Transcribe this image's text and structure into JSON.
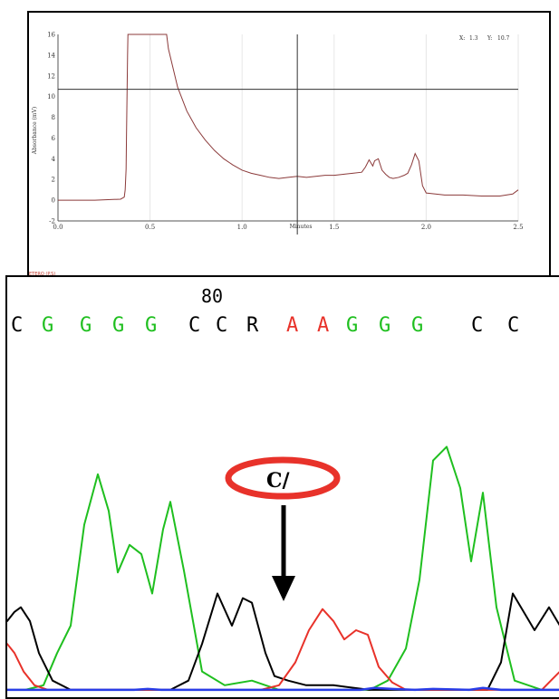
{
  "chart_data": [
    {
      "type": "line",
      "xlabel": "Minutes",
      "ylabel": "Absorbance (mV)",
      "xlim": [
        0.0,
        2.5
      ],
      "ylim": [
        -2,
        16
      ],
      "x_ticks": [
        "0.0",
        "0.5",
        "1.0",
        "1.5",
        "2.0",
        "2.5"
      ],
      "y_ticks": [
        "-2",
        "0",
        "2",
        "4",
        "6",
        "8",
        "10",
        "12",
        "14",
        "16"
      ],
      "grid": "vertical",
      "cursor": {
        "x": 1.3,
        "y": 10.7
      },
      "cursor_readout": {
        "x_label": "X:",
        "x_value": "1.3",
        "y_label": "Y:",
        "y_value": "10.7"
      },
      "footer_label": "ETERO (P.S)",
      "line_color": "#8b3a3a",
      "series": [
        {
          "x": [
            0.0,
            0.2,
            0.34,
            0.36,
            0.365,
            0.37,
            0.372,
            0.375,
            0.378,
            0.38,
            0.385,
            0.59,
            0.6,
            0.65,
            0.7,
            0.75,
            0.8,
            0.85,
            0.9,
            0.95,
            1.0,
            1.05,
            1.1,
            1.15,
            1.2,
            1.25,
            1.3,
            1.35,
            1.4,
            1.45,
            1.5,
            1.55,
            1.6,
            1.65,
            1.67,
            1.69,
            1.71,
            1.72,
            1.74,
            1.76,
            1.78,
            1.8,
            1.82,
            1.85,
            1.88,
            1.9,
            1.92,
            1.94,
            1.96,
            1.98,
            2.0,
            2.05,
            2.1,
            2.2,
            2.3,
            2.4,
            2.47,
            2.5
          ],
          "y": [
            0.0,
            0.0,
            0.1,
            0.3,
            1.0,
            3.0,
            6.0,
            10.0,
            14.0,
            16.0,
            16.0,
            16.0,
            14.6,
            10.9,
            8.6,
            7.0,
            5.8,
            4.8,
            4.0,
            3.4,
            2.9,
            2.6,
            2.4,
            2.2,
            2.1,
            2.2,
            2.3,
            2.2,
            2.3,
            2.4,
            2.4,
            2.5,
            2.6,
            2.7,
            3.2,
            3.9,
            3.3,
            3.8,
            4.0,
            2.9,
            2.5,
            2.2,
            2.1,
            2.2,
            2.4,
            2.6,
            3.4,
            4.5,
            3.8,
            1.4,
            0.7,
            0.6,
            0.5,
            0.5,
            0.4,
            0.4,
            0.6,
            1.0
          ]
        }
      ]
    },
    {
      "type": "line",
      "position_label": "80",
      "bases": [
        {
          "letter": "C",
          "color": "#000000"
        },
        {
          "letter": "G",
          "color": "#1fbf1f"
        },
        {
          "letter": "G",
          "color": "#1fbf1f"
        },
        {
          "letter": "G",
          "color": "#1fbf1f"
        },
        {
          "letter": "G",
          "color": "#1fbf1f"
        },
        {
          "letter": "C",
          "color": "#000000"
        },
        {
          "letter": "C",
          "color": "#000000"
        },
        {
          "letter": "R",
          "color": "#000000"
        },
        {
          "letter": "A",
          "color": "#e8322a"
        },
        {
          "letter": "A",
          "color": "#e8322a"
        },
        {
          "letter": "G",
          "color": "#1fbf1f"
        },
        {
          "letter": "G",
          "color": "#1fbf1f"
        },
        {
          "letter": "G",
          "color": "#1fbf1f"
        },
        {
          "letter": "C",
          "color": "#000000"
        },
        {
          "letter": "C",
          "color": "#000000"
        }
      ],
      "annotation_text": "C/",
      "annotation_color": "#e8322a",
      "x_range": [
        0,
        610
      ],
      "y_range": [
        0,
        460
      ],
      "series": [
        {
          "name": "G",
          "color": "#1fbf1f",
          "x": [
            0,
            20,
            40,
            55,
            70,
            85,
            100,
            112,
            122,
            135,
            148,
            160,
            172,
            180,
            195,
            215,
            240,
            270,
            300,
            320,
            340,
            370,
            400,
            420,
            440,
            455,
            470,
            485,
            500,
            512,
            525,
            540,
            560,
            590,
            610
          ],
          "y": [
            450,
            450,
            445,
            410,
            380,
            270,
            215,
            255,
            322,
            292,
            302,
            345,
            275,
            245,
            320,
            430,
            445,
            440,
            450,
            450,
            450,
            450,
            450,
            440,
            405,
            330,
            200,
            185,
            230,
            310,
            235,
            360,
            440,
            450,
            450
          ]
        },
        {
          "name": "C",
          "color": "#000000",
          "x": [
            0,
            8,
            15,
            25,
            35,
            50,
            70,
            100,
            140,
            180,
            200,
            215,
            232,
            248,
            260,
            270,
            285,
            295,
            310,
            330,
            360,
            400,
            450,
            500,
            530,
            545,
            558,
            570,
            582,
            598,
            610
          ],
          "y": [
            375,
            365,
            360,
            375,
            410,
            440,
            450,
            450,
            450,
            450,
            440,
            400,
            345,
            380,
            350,
            355,
            410,
            435,
            440,
            445,
            445,
            450,
            450,
            450,
            450,
            420,
            345,
            365,
            385,
            360,
            380
          ]
        },
        {
          "name": "A",
          "color": "#e8322a",
          "x": [
            0,
            8,
            18,
            30,
            45,
            60,
            100,
            200,
            280,
            300,
            318,
            333,
            348,
            360,
            372,
            385,
            398,
            410,
            425,
            440,
            460,
            500,
            560,
            590,
            600,
            610
          ],
          "y": [
            400,
            410,
            430,
            445,
            450,
            450,
            450,
            450,
            450,
            445,
            420,
            385,
            362,
            375,
            395,
            385,
            390,
            425,
            442,
            450,
            450,
            450,
            450,
            450,
            440,
            430
          ]
        },
        {
          "name": "T",
          "color": "#2a3ee8",
          "x": [
            0,
            100,
            140,
            155,
            170,
            200,
            300,
            390,
            405,
            425,
            450,
            470,
            510,
            525,
            545,
            610
          ],
          "y": [
            450,
            450,
            450,
            449,
            450,
            450,
            450,
            450,
            448,
            449,
            450,
            449,
            450,
            448,
            450,
            450
          ]
        }
      ]
    }
  ]
}
